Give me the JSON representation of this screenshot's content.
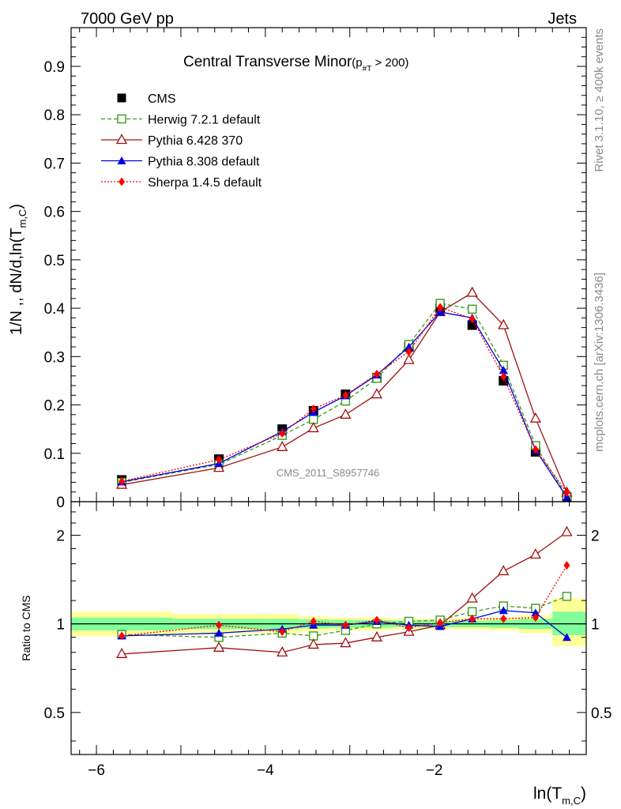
{
  "header": {
    "left": "7000 GeV pp",
    "right": "Jets",
    "side_top": "Rivet 3.1.10, ≥ 400k events",
    "side_bottom": "mcplots.cern.ch [arXiv:1306.3436]",
    "watermark": "CMS_2011_S8957746"
  },
  "colors": {
    "cms": "#000000",
    "herwig": "#3a9a1a",
    "pythia6": "#a01010",
    "pythia8": "#0000e0",
    "sherpa": "#ff0000",
    "band_yellow": "#ffff99",
    "band_green": "#80ff9a"
  },
  "chart_data": [
    {
      "type": "line",
      "title": "Central Transverse Minor",
      "title_suffix": "(p",
      "title_sub": "#T",
      "title_tail": " > 200)",
      "ylabel": "1/N ,, dN/d,ln(T",
      "ylabel_sub": "m,C",
      "ylabel_tail": ")",
      "ylim": [
        0,
        0.98
      ],
      "yticks": [
        0,
        0.1,
        0.2,
        0.3,
        0.4,
        0.5,
        0.6,
        0.7,
        0.8,
        0.9
      ],
      "ytick_labels": [
        "0",
        "0.1",
        "0.2",
        "0.3",
        "0.4",
        "0.5",
        "0.6",
        "0.7",
        "0.8",
        "0.9"
      ],
      "x": [
        -5.7,
        -4.55,
        -3.8,
        -3.43,
        -3.05,
        -2.68,
        -2.3,
        -1.93,
        -1.55,
        -1.18,
        -0.8,
        -0.43
      ],
      "series": [
        {
          "name": "CMS",
          "values": [
            0.045,
            0.088,
            0.15,
            0.188,
            0.222,
            0.256,
            0.32,
            0.4,
            0.365,
            0.25,
            0.103,
            0.01
          ]
        },
        {
          "name": "Herwig 7.2.1 default",
          "values": [
            0.04,
            0.077,
            0.137,
            0.17,
            0.208,
            0.255,
            0.325,
            0.41,
            0.398,
            0.282,
            0.116,
            0.011
          ]
        },
        {
          "name": "Pythia 6.428 370",
          "values": [
            0.035,
            0.07,
            0.113,
            0.152,
            0.18,
            0.222,
            0.293,
            0.392,
            0.432,
            0.365,
            0.172,
            0.019
          ]
        },
        {
          "name": "Pythia 8.308 default",
          "values": [
            0.041,
            0.079,
            0.145,
            0.185,
            0.219,
            0.262,
            0.32,
            0.392,
            0.38,
            0.272,
            0.107,
            0.009
          ]
        },
        {
          "name": "Sherpa 1.4.5 default",
          "values": [
            0.042,
            0.087,
            0.141,
            0.192,
            0.22,
            0.264,
            0.31,
            0.402,
            0.378,
            0.258,
            0.108,
            0.019
          ]
        }
      ],
      "legend": [
        "CMS",
        "Herwig 7.2.1 default",
        "Pythia 6.428 370",
        "Pythia 8.308 default",
        "Sherpa 1.4.5 default"
      ],
      "legend_position": "top-left"
    },
    {
      "type": "line",
      "ylabel": "Ratio to CMS",
      "xlabel": "ln(T",
      "xlabel_sub": "m,C",
      "xlabel_tail": ")",
      "xlim": [
        -6.3,
        -0.2
      ],
      "xticks": [
        -6,
        -4,
        -2
      ],
      "xtick_labels": [
        "−6",
        "−4",
        "−2"
      ],
      "ylim": [
        0.36,
        2.6
      ],
      "scale": "log",
      "yticks": [
        0.5,
        1,
        2
      ],
      "ytick_labels": [
        "0.5",
        "1",
        "2"
      ],
      "bands": {
        "edges": [
          -6.3,
          -5.1,
          -4.0,
          -3.6,
          -3.25,
          -2.85,
          -2.5,
          -2.1,
          -1.75,
          -1.35,
          -1.0,
          -0.6,
          -0.2
        ],
        "outer_lo": [
          0.91,
          0.93,
          0.93,
          0.94,
          0.95,
          0.95,
          0.96,
          0.96,
          0.955,
          0.95,
          0.93,
          0.84
        ],
        "outer_hi": [
          1.1,
          1.08,
          1.08,
          1.06,
          1.05,
          1.05,
          1.04,
          1.04,
          1.045,
          1.05,
          1.07,
          1.22
        ],
        "inner_lo": [
          0.95,
          0.96,
          0.96,
          0.965,
          0.97,
          0.97,
          0.975,
          0.975,
          0.975,
          0.97,
          0.96,
          0.915
        ],
        "inner_hi": [
          1.05,
          1.04,
          1.04,
          1.035,
          1.03,
          1.03,
          1.025,
          1.025,
          1.025,
          1.03,
          1.04,
          1.1
        ]
      },
      "series": [
        {
          "name": "Herwig 7.2.1 default",
          "values": [
            0.92,
            0.9,
            0.93,
            0.91,
            0.95,
            1.0,
            1.02,
            1.03,
            1.1,
            1.15,
            1.13,
            1.24
          ]
        },
        {
          "name": "Pythia 6.428 370",
          "values": [
            0.79,
            0.83,
            0.8,
            0.85,
            0.86,
            0.9,
            0.94,
            0.99,
            1.22,
            1.51,
            1.72,
            2.05
          ]
        },
        {
          "name": "Pythia 8.308 default",
          "values": [
            0.91,
            0.93,
            0.96,
            0.99,
            0.99,
            1.02,
            0.99,
            0.98,
            1.04,
            1.11,
            1.09,
            0.9
          ]
        },
        {
          "name": "Sherpa 1.4.5 default",
          "values": [
            0.91,
            0.99,
            0.94,
            1.02,
            0.99,
            1.03,
            0.97,
            1.01,
            1.04,
            1.04,
            1.05,
            1.58
          ]
        }
      ]
    }
  ]
}
